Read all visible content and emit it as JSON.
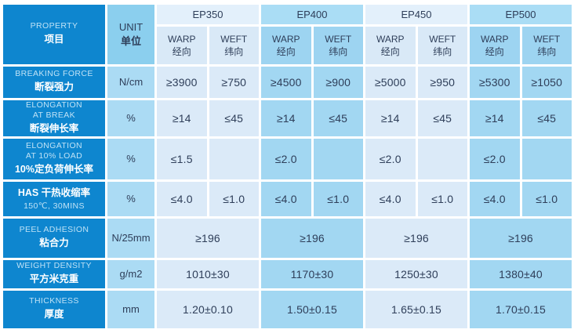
{
  "colors": {
    "property_column_blue": "#0e86cf",
    "unit_header_blue": "#8bcfee",
    "unit_cell_blue": "#abdbf4",
    "group_light_band": "#e3f0fb",
    "group_light_cell": "#dbeaf8",
    "group_dark_band": "#aaddf5",
    "group_dark_cell": "#a2d7f2",
    "value_text": "#2e3e59",
    "label_en_text": "#bfe2f6",
    "label_zh_text": "#ffffff",
    "grid_line": "#ffffff"
  },
  "header": {
    "property": {
      "en": "PROPERTY",
      "zh": "项目"
    },
    "unit": {
      "en": "UNIT",
      "zh": "单位"
    },
    "groups": [
      "EP350",
      "EP400",
      "EP450",
      "EP500"
    ],
    "sub": {
      "warp_en": "WARP",
      "warp_zh": "经向",
      "weft_en": "WEFT",
      "weft_zh": "纬向"
    }
  },
  "rows": [
    {
      "l1": "BREAKING FORCE",
      "l2": "断裂强力",
      "unit": "N/cm",
      "values": [
        "≥3900",
        "≥750",
        "≥4500",
        "≥900",
        "≥5000",
        "≥950",
        "≥5300",
        "≥1050"
      ]
    },
    {
      "l1": "ELONGATION",
      "l2": "AT BREAK",
      "l3": "断裂伸长率",
      "unit": "%",
      "values": [
        "≥14",
        "≤45",
        "≥14",
        "≤45",
        "≥14",
        "≤45",
        "≥14",
        "≤45"
      ]
    },
    {
      "l1": "ELONGATION",
      "l2": "AT 10% LOAD",
      "l3": "10%定负荷伸长率",
      "unit": "%",
      "values": [
        "≤1.5",
        "",
        "≤2.0",
        "",
        "≤2.0",
        "",
        "≤2.0",
        ""
      ]
    },
    {
      "l1": "HAS  干热收缩率",
      "l2": "150℃, 30MINS",
      "unit": "%",
      "values": [
        "≤4.0",
        "≤1.0",
        "≤4.0",
        "≤1.0",
        "≤4.0",
        "≤1.0",
        "≤4.0",
        "≤1.0"
      ]
    },
    {
      "l1": "PEEL ADHESION",
      "l2": "粘合力",
      "unit": "N/25mm",
      "merged_values": [
        "≥196",
        "≥196",
        "≥196",
        "≥196"
      ]
    },
    {
      "l1": "WEIGHT DENSITY",
      "l2": "平方米克重",
      "unit": "g/m2",
      "merged_values": [
        "1010±30",
        "1170±30",
        "1250±30",
        "1380±40"
      ]
    },
    {
      "l1": "THICKNESS",
      "l2": "厚度",
      "unit": "mm",
      "merged_values": [
        "1.20±0.10",
        "1.50±0.15",
        "1.65±0.15",
        "1.70±0.15"
      ]
    }
  ]
}
